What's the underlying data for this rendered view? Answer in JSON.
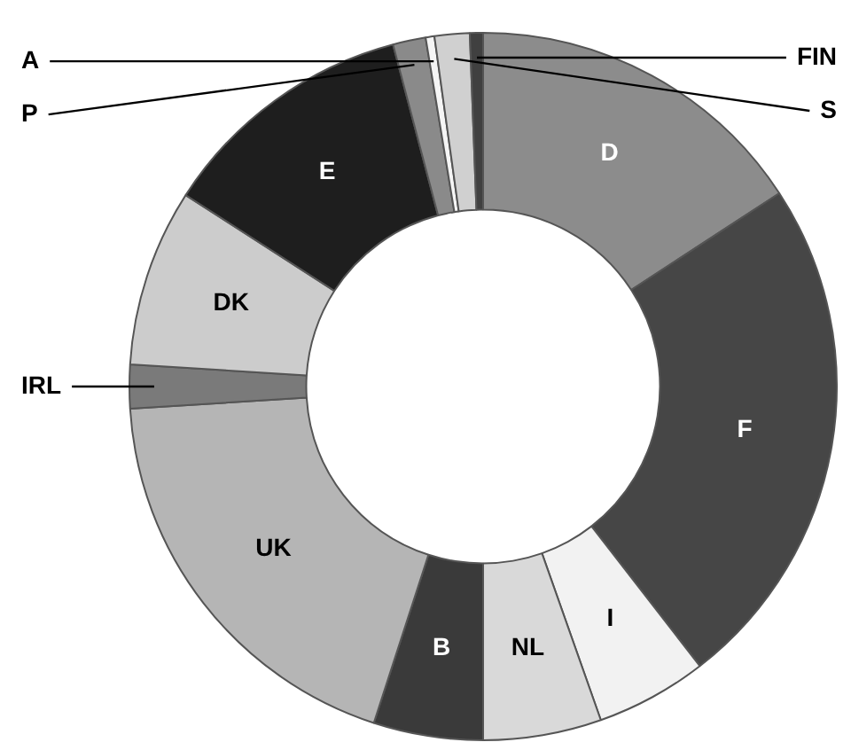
{
  "chart_data": {
    "type": "donut",
    "categories": [
      "D",
      "F",
      "I",
      "NL",
      "B",
      "UK",
      "IRL",
      "DK",
      "E",
      "P",
      "A",
      "S",
      "FIN"
    ],
    "values": [
      15.8,
      23.7,
      5.1,
      5.4,
      5.0,
      19.0,
      2.0,
      8.1,
      11.8,
      1.5,
      0.4,
      1.6,
      0.6
    ],
    "colors": [
      "#8c8c8c",
      "#464646",
      "#f2f2f2",
      "#d9d9d9",
      "#3a3a3a",
      "#b5b5b5",
      "#7a7a7a",
      "#cccccc",
      "#1e1e1e",
      "#8a8a8a",
      "#f5f5f5",
      "#d0d0d0",
      "#404040"
    ],
    "legend": false
  }
}
